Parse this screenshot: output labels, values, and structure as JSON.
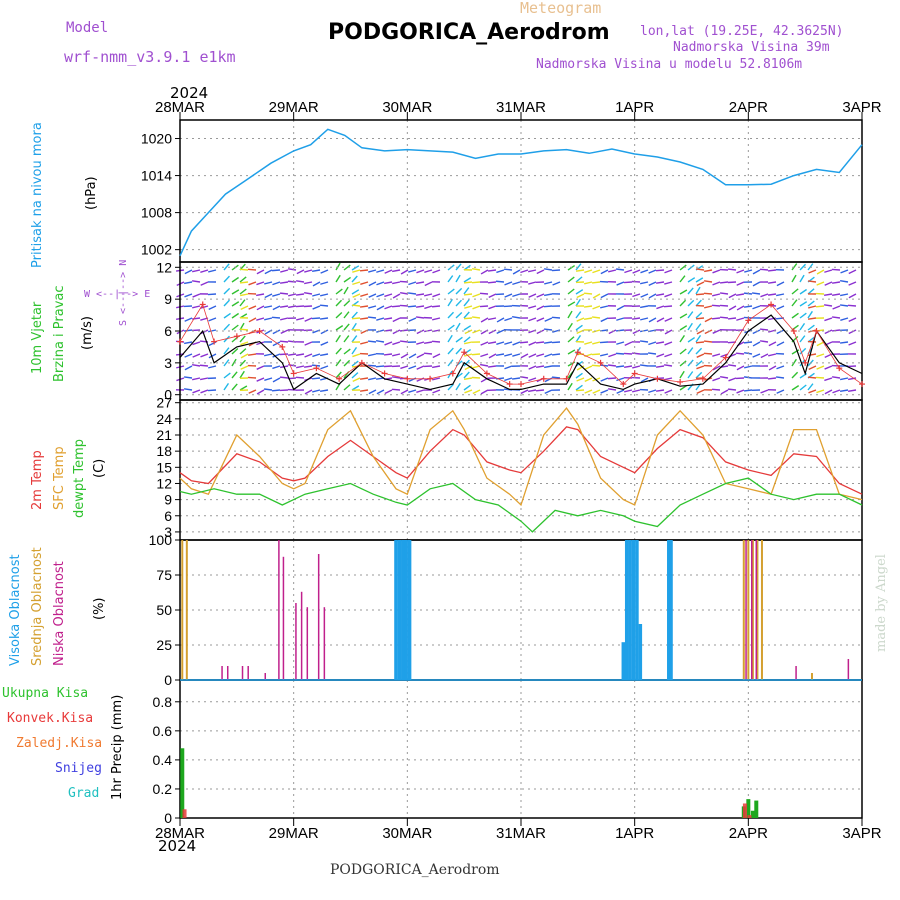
{
  "header": {
    "model_label": "Model",
    "model_name": "wrf-nmm_v3.9.1 e1km",
    "meteogram_label": "Meteogram",
    "station": "PODGORICA_Aerodrom",
    "lonlat": "lon,lat (19.25E, 42.3625N)",
    "elevation": "Nadmorska Visina 39m",
    "model_elevation": "Nadmorska Visina u modelu 52.8106m",
    "year_top": "2024",
    "year_bottom": "2024",
    "footer_station": "PODGORICA_Aerodrom",
    "watermark": "made by Angel"
  },
  "colors": {
    "pressure": "#1f9fe8",
    "wind_speed": "#000000",
    "wind_gust": "#e83a3a",
    "temp2m": "#e53a3a",
    "temp_sfc": "#e0a030",
    "dewpoint": "#2ec22e",
    "cloud_high": "#1fa0e8",
    "cloud_mid": "#d4a030",
    "cloud_low": "#c0208c",
    "precip_total": "#1ea81e",
    "precip_conv": "#e83a3a",
    "precip_frozen": "#f07a30",
    "precip_snow": "#4040e0",
    "precip_hail": "#20c0c0"
  },
  "x_axis": {
    "dates": [
      "28MAR",
      "29MAR",
      "30MAR",
      "31MAR",
      "1APR",
      "2APR",
      "3APR"
    ],
    "range_days": [
      0,
      6
    ]
  },
  "panels": {
    "pressure": {
      "label_color_text": "Pritisak na nivou mora",
      "unit": "(hPa)"
    },
    "wind": {
      "label1": "10m Vjetar",
      "label2": "Brzina i Pravac",
      "unit": "(m/s)",
      "compass": "W <--|--> E",
      "compass_ns": "S <--|--> N"
    },
    "temp": {
      "label1": "2m Temp",
      "label2": "SFC Temp",
      "label3": "dewpt Temp",
      "unit": "(C)"
    },
    "cloud": {
      "label1": "Visoka Oblacnost",
      "label2": "Srednja Oblacnost",
      "label3": "Niska Oblacnost",
      "unit": "(%)"
    },
    "precip": {
      "legend": [
        "Ukupna Kisa",
        "Konvek.Kisa",
        "Zaledj.Kisa",
        "Snijeg",
        "Grad"
      ],
      "unit": "1hr Precip (mm)"
    }
  },
  "chart_data": [
    {
      "type": "line",
      "title": "",
      "ylabel": "Pritisak na nivou mora (hPa)",
      "ylim": [
        1000,
        1023
      ],
      "yticks": [
        1002,
        1008,
        1014,
        1020
      ],
      "grid": true,
      "series": [
        {
          "name": "Pritisak na nivou mora",
          "x": [
            0,
            0.1,
            0.25,
            0.4,
            0.6,
            0.8,
            1.0,
            1.15,
            1.3,
            1.45,
            1.6,
            1.8,
            2.0,
            2.2,
            2.4,
            2.6,
            2.8,
            3.0,
            3.2,
            3.4,
            3.6,
            3.8,
            4.0,
            4.2,
            4.4,
            4.6,
            4.8,
            5.0,
            5.2,
            5.4,
            5.6,
            5.8,
            6.0
          ],
          "values": [
            1001,
            1005,
            1008,
            1011,
            1013.5,
            1016,
            1018,
            1019,
            1021.5,
            1020.5,
            1018.5,
            1018,
            1018.2,
            1018,
            1017.8,
            1016.8,
            1017.5,
            1017.5,
            1018,
            1018.2,
            1017.6,
            1018.3,
            1017.5,
            1017,
            1016.2,
            1015,
            1012.5,
            1012.5,
            1012.6,
            1014,
            1015,
            1014.5,
            1019
          ]
        }
      ]
    },
    {
      "type": "line",
      "title": "",
      "ylabel": "10m Vjetar Brzina i Pravac (m/s)",
      "ylim": [
        -0.5,
        12.5
      ],
      "yticks": [
        0,
        3,
        6,
        9,
        12
      ],
      "grid": true,
      "series": [
        {
          "name": "speed",
          "x": [
            0,
            0.2,
            0.3,
            0.5,
            0.7,
            0.9,
            1.0,
            1.2,
            1.4,
            1.6,
            1.8,
            2.0,
            2.2,
            2.4,
            2.5,
            2.7,
            2.9,
            3.0,
            3.2,
            3.4,
            3.5,
            3.7,
            3.9,
            4.0,
            4.2,
            4.4,
            4.6,
            4.8,
            5.0,
            5.2,
            5.4,
            5.5,
            5.6,
            5.8,
            6.0
          ],
          "values": [
            3.5,
            6,
            3,
            4.5,
            5,
            3,
            0.5,
            2,
            1,
            3,
            1.5,
            1,
            0.5,
            1,
            3,
            1.5,
            0.5,
            0.5,
            1,
            1,
            3,
            1,
            0.5,
            1,
            1.5,
            0.8,
            1,
            3,
            6,
            7.5,
            5,
            2,
            6,
            3,
            2
          ]
        },
        {
          "name": "gust",
          "x": [
            0,
            0.2,
            0.3,
            0.5,
            0.7,
            0.9,
            1.0,
            1.2,
            1.4,
            1.6,
            1.8,
            2.0,
            2.2,
            2.4,
            2.5,
            2.7,
            2.9,
            3.0,
            3.2,
            3.4,
            3.5,
            3.7,
            3.9,
            4.0,
            4.2,
            4.4,
            4.6,
            4.8,
            5.0,
            5.2,
            5.4,
            5.5,
            5.6,
            5.8,
            6.0
          ],
          "values": [
            5,
            8.5,
            5,
            5.5,
            6,
            4.5,
            2,
            2.5,
            1.5,
            3,
            2,
            1.5,
            1.5,
            2,
            4,
            2,
            1,
            1,
            1.5,
            1.5,
            4,
            3,
            1,
            2,
            1.5,
            1.2,
            1.5,
            3.5,
            7,
            8.5,
            6,
            3,
            6,
            2.5,
            1
          ]
        }
      ]
    },
    {
      "type": "line",
      "title": "",
      "ylabel": "Temp (C)",
      "ylim": [
        1.5,
        27.5
      ],
      "yticks": [
        3,
        6,
        9,
        12,
        15,
        18,
        21,
        24,
        27
      ],
      "grid": true,
      "series": [
        {
          "name": "2m Temp",
          "x": [
            0,
            0.1,
            0.25,
            0.5,
            0.7,
            0.9,
            1.0,
            1.1,
            1.3,
            1.5,
            1.7,
            1.9,
            2.0,
            2.2,
            2.4,
            2.5,
            2.7,
            2.9,
            3.0,
            3.2,
            3.4,
            3.5,
            3.7,
            3.9,
            4.0,
            4.2,
            4.4,
            4.6,
            4.8,
            5.0,
            5.2,
            5.4,
            5.6,
            5.8,
            6.0
          ],
          "values": [
            14,
            12.5,
            12,
            17.5,
            16,
            13,
            12.5,
            13,
            17,
            20,
            17,
            14,
            13,
            18,
            22,
            21,
            16,
            14.5,
            14,
            18,
            22.5,
            22,
            17,
            15,
            14,
            18.5,
            22,
            20.5,
            16,
            14.5,
            13.5,
            17.5,
            17,
            12,
            10
          ]
        },
        {
          "name": "SFC Temp",
          "x": [
            0,
            0.1,
            0.25,
            0.5,
            0.7,
            0.9,
            1.0,
            1.1,
            1.3,
            1.5,
            1.7,
            1.9,
            2.0,
            2.2,
            2.4,
            2.5,
            2.7,
            2.9,
            3.0,
            3.2,
            3.4,
            3.5,
            3.7,
            3.9,
            4.0,
            4.2,
            4.4,
            4.6,
            4.8,
            5.0,
            5.2,
            5.4,
            5.6,
            5.8,
            6.0
          ],
          "values": [
            13,
            11,
            10,
            21,
            17,
            12,
            11,
            12,
            22,
            25.5,
            17,
            11,
            10,
            22,
            25.5,
            22,
            13,
            10,
            8,
            21,
            26,
            23,
            13,
            9,
            8,
            21,
            25.5,
            21,
            12,
            11,
            10,
            22,
            22,
            10,
            9
          ]
        },
        {
          "name": "dewpt Temp",
          "x": [
            0,
            0.1,
            0.3,
            0.5,
            0.7,
            0.9,
            1.1,
            1.3,
            1.5,
            1.7,
            1.9,
            2.0,
            2.2,
            2.4,
            2.6,
            2.8,
            3.0,
            3.1,
            3.3,
            3.5,
            3.7,
            3.9,
            4.0,
            4.2,
            4.4,
            4.6,
            4.8,
            5.0,
            5.2,
            5.4,
            5.6,
            5.8,
            6.0
          ],
          "values": [
            10.5,
            10,
            11,
            10,
            10,
            8,
            10,
            11,
            12,
            10,
            8.5,
            8,
            11,
            12,
            9,
            8,
            5,
            3,
            7,
            6,
            7,
            6,
            5,
            4,
            8,
            10,
            12,
            13,
            10,
            9,
            10,
            10,
            8
          ]
        }
      ]
    },
    {
      "type": "bar",
      "title": "",
      "ylabel": "Oblacnost (%)",
      "ylim": [
        0,
        100
      ],
      "yticks": [
        0,
        25,
        50,
        75,
        100
      ],
      "grid": true,
      "series": [
        {
          "name": "Visoka Oblacnost",
          "x": [
            1.9,
            1.93,
            1.96,
            1.99,
            2.02,
            3.9,
            3.93,
            3.96,
            3.99,
            4.02,
            4.05,
            4.3,
            4.32
          ],
          "values": [
            100,
            100,
            100,
            100,
            100,
            27,
            100,
            100,
            100,
            100,
            40,
            100,
            100
          ]
        },
        {
          "name": "Srednja Oblacnost",
          "x": [
            0.02,
            0.06,
            4.96,
            5.0,
            5.04,
            5.08,
            5.12,
            5.56
          ],
          "values": [
            100,
            100,
            100,
            100,
            100,
            100,
            100,
            5
          ]
        },
        {
          "name": "Niska Oblacnost",
          "x": [
            0.37,
            0.42,
            0.55,
            0.6,
            0.75,
            0.87,
            0.91,
            1.02,
            1.07,
            1.12,
            1.22,
            1.27,
            4.98,
            5.03,
            5.07,
            5.42,
            5.88
          ],
          "values": [
            10,
            10,
            10,
            10,
            5,
            100,
            88,
            55,
            63,
            52,
            90,
            52,
            100,
            100,
            100,
            10,
            15
          ]
        }
      ]
    },
    {
      "type": "bar",
      "title": "",
      "ylabel": "1hr Precip (mm)",
      "ylim": [
        0,
        0.95
      ],
      "yticks": [
        0,
        0.2,
        0.4,
        0.6,
        0.8
      ],
      "grid": true,
      "series": [
        {
          "name": "Ukupna Kisa",
          "x": [
            0.02,
            4.96,
            5.0,
            5.04,
            5.07
          ],
          "values": [
            0.48,
            0.08,
            0.13,
            0.05,
            0.12
          ]
        },
        {
          "name": "Konvek.Kisa",
          "x": [
            0.04,
            4.97,
            5.01
          ],
          "values": [
            0.06,
            0.1,
            0.02
          ]
        }
      ]
    }
  ]
}
